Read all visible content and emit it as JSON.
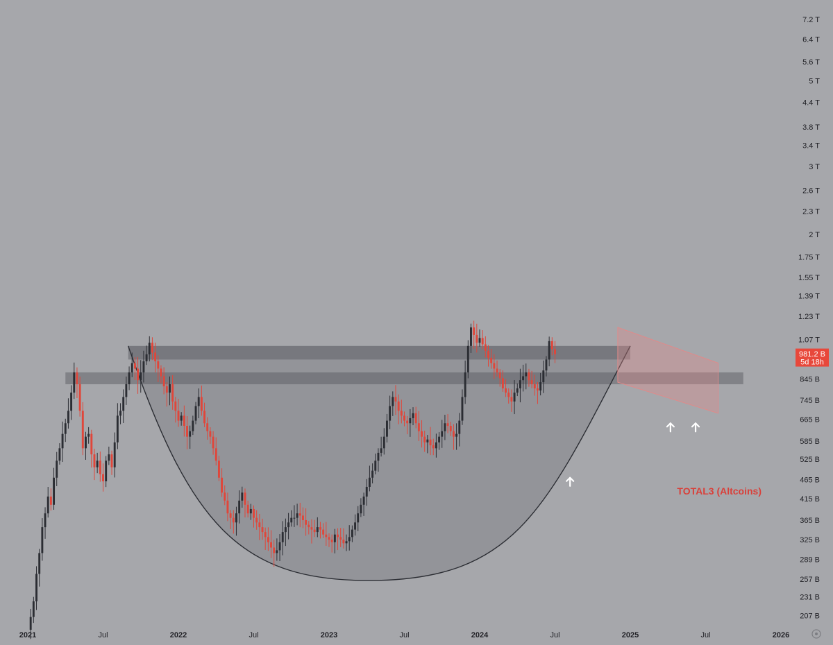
{
  "chart_data": {
    "type": "candlestick",
    "title": "TOTAL3 (Altcoins)",
    "y_scale": "log",
    "y_range": [
      "190 B",
      "7.6 T"
    ],
    "y_ticks": [
      "7.2 T",
      "6.4 T",
      "5.6 T",
      "5 T",
      "4.4 T",
      "3.8 T",
      "3.4 T",
      "3 T",
      "2.6 T",
      "2.3 T",
      "2 T",
      "1.75 T",
      "1.55 T",
      "1.39 T",
      "1.23 T",
      "1.07 T",
      "845 B",
      "745 B",
      "665 B",
      "585 B",
      "525 B",
      "465 B",
      "415 B",
      "365 B",
      "325 B",
      "289 B",
      "257 B",
      "231 B",
      "207 B"
    ],
    "x_ticks": [
      "2021",
      "Jul",
      "2022",
      "Jul",
      "2023",
      "Jul",
      "2024",
      "Jul",
      "2025",
      "Jul",
      "2026"
    ],
    "x_range": [
      "2021-01",
      "2026-01"
    ],
    "price_label": {
      "value": "981.2 B",
      "countdown": "5d 18h",
      "color": "#e8483b"
    },
    "colors": {
      "up": "#2b2d33",
      "down": "#e0463a",
      "background": "#a6a7ab",
      "zone": "#5b5d63",
      "channel": "#e08a8a"
    },
    "weekly_closes_billion": [
      190,
      205,
      225,
      265,
      300,
      350,
      380,
      420,
      400,
      470,
      520,
      560,
      610,
      650,
      700,
      780,
      880,
      820,
      700,
      560,
      600,
      610,
      540,
      500,
      520,
      480,
      460,
      520,
      540,
      500,
      580,
      680,
      700,
      760,
      820,
      880,
      930,
      900,
      840,
      880,
      940,
      980,
      1050,
      990,
      940,
      900,
      860,
      810,
      780,
      820,
      740,
      700,
      660,
      680,
      640,
      600,
      620,
      660,
      720,
      760,
      700,
      650,
      620,
      600,
      560,
      520,
      470,
      430,
      410,
      380,
      370,
      360,
      380,
      410,
      430,
      400,
      380,
      390,
      370,
      360,
      350,
      340,
      330,
      320,
      310,
      300,
      305,
      320,
      340,
      350,
      360,
      370,
      370,
      380,
      375,
      365,
      355,
      350,
      345,
      340,
      350,
      345,
      335,
      330,
      325,
      320,
      335,
      330,
      325,
      318,
      322,
      330,
      345,
      360,
      380,
      400,
      420,
      445,
      470,
      490,
      520,
      545,
      560,
      600,
      660,
      720,
      760,
      740,
      700,
      680,
      660,
      650,
      670,
      690,
      650,
      620,
      600,
      580,
      590,
      570,
      560,
      580,
      600,
      620,
      650,
      640,
      620,
      600,
      610,
      660,
      760,
      880,
      1030,
      1150,
      1100,
      1050,
      1080,
      1040,
      1000,
      960,
      930,
      900,
      880,
      850,
      800,
      780,
      760,
      740,
      780,
      800,
      840,
      860,
      880,
      840,
      820,
      800,
      790,
      830,
      890,
      950,
      1060,
      1010,
      981
    ],
    "zones": [
      {
        "name": "resistance-zone",
        "from_date": "2021-09",
        "to_date": "2025-01",
        "low": "950 B",
        "high": "1.03 T"
      },
      {
        "name": "support-band",
        "from_date": "2021-04",
        "to_date": "2025-10",
        "low": "820 B",
        "high": "880 B"
      }
    ],
    "annotations": {
      "cup_curve": "rounded bottom from 2021-09 high through 2023-05 low near 255 B to 2025-01",
      "channel": "descending red channel 2024-12 to 2025-08",
      "arrows": [
        "2024-08",
        "2025-04",
        "2025-06"
      ]
    },
    "grid": false,
    "legend": "none"
  }
}
